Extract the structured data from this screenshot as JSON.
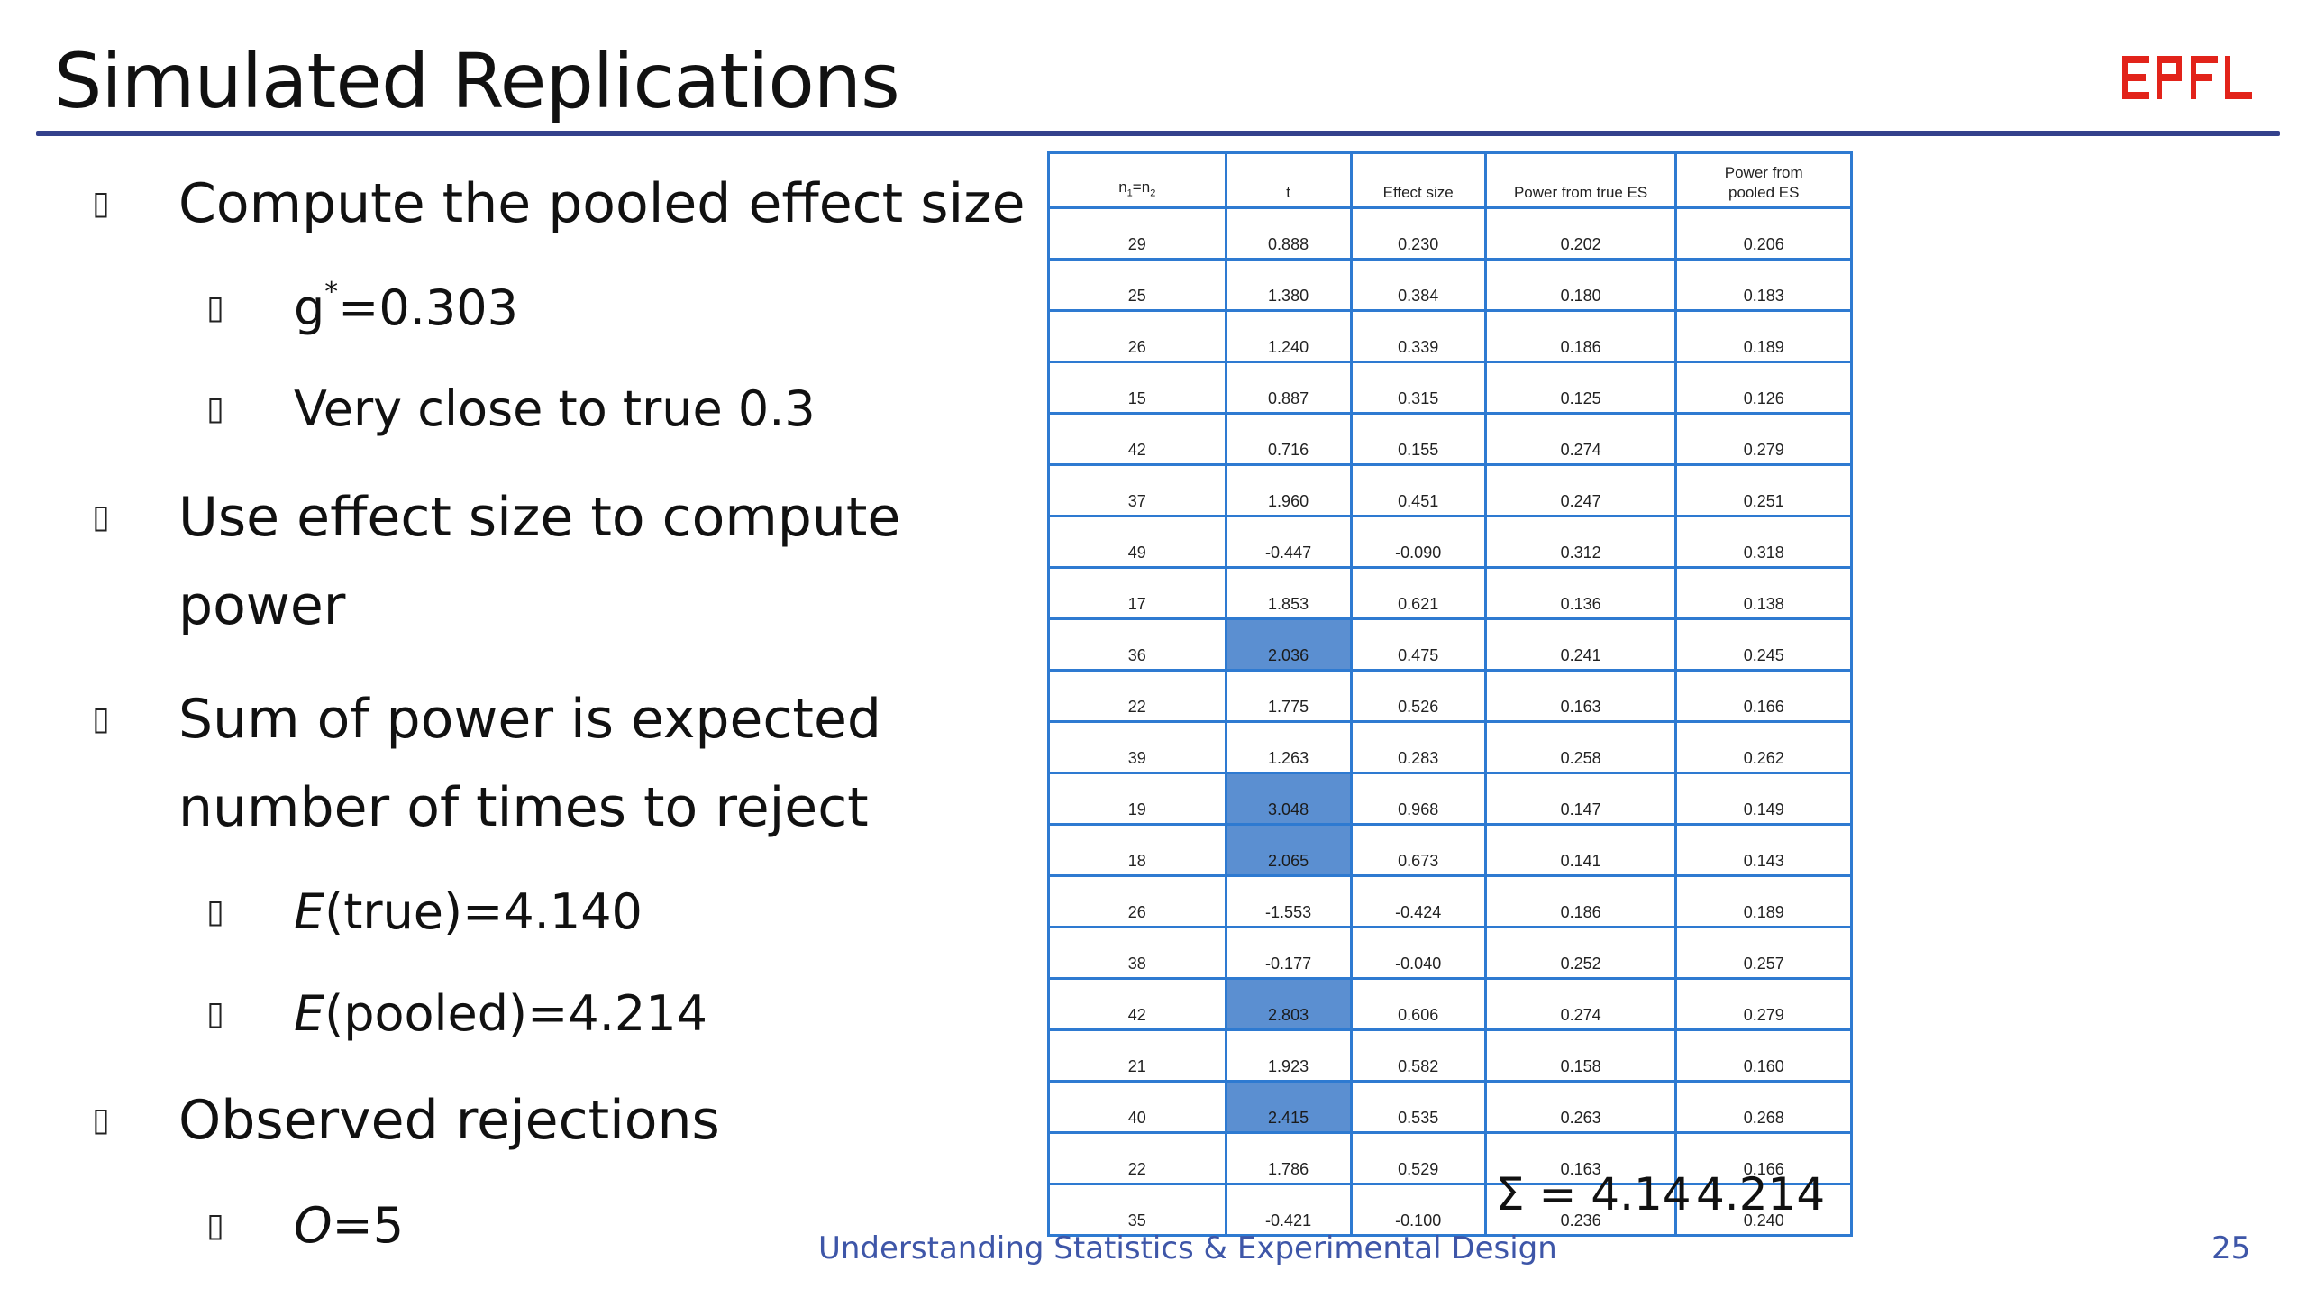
{
  "slide": {
    "title": "Simulated Replications",
    "logo_text": "EPFL",
    "logo_color": "#e2231a",
    "accent_color": "#34418c",
    "table_border_color": "#2e7ad1",
    "highlight_color": "#5b8fd1"
  },
  "bullets": [
    {
      "level": 1,
      "marker": "▯",
      "text": "Compute the pooled effect size"
    },
    {
      "level": 2,
      "marker": "▯",
      "text_main": "g",
      "sup": "*",
      "text_rest": "=0.303"
    },
    {
      "level": 2,
      "marker": "▯",
      "text": "Very close to true 0.3"
    },
    {
      "level": 1,
      "marker": "▯",
      "text": "Use effect size to compute"
    },
    {
      "level": 1,
      "marker": "",
      "text": "power"
    },
    {
      "level": 1,
      "marker": "▯",
      "text": "Sum of power is expected"
    },
    {
      "level": 1,
      "marker": "",
      "text": "number of times to reject"
    },
    {
      "level": 2,
      "marker": "▯",
      "italic": "E",
      "text": "(true)=4.140"
    },
    {
      "level": 2,
      "marker": "▯",
      "italic": "E",
      "text": "(pooled)=4.214"
    },
    {
      "level": 1,
      "marker": "▯",
      "text": "Observed rejections"
    },
    {
      "level": 2,
      "marker": "▯",
      "italic": "O",
      "text": "=5"
    }
  ],
  "table": {
    "headers": {
      "n": {
        "base": "n",
        "sub1": "1",
        "eq": "=n",
        "sub2": "2"
      },
      "t": "t",
      "effect_size": "Effect size",
      "power_true": "Power from true ES",
      "power_pooled_line1": "Power from",
      "power_pooled_line2": "pooled ES"
    },
    "rows": [
      {
        "n": "29",
        "t": "0.888",
        "es": "0.230",
        "pt": "0.202",
        "pp": "0.206",
        "hl": false
      },
      {
        "n": "25",
        "t": "1.380",
        "es": "0.384",
        "pt": "0.180",
        "pp": "0.183",
        "hl": false
      },
      {
        "n": "26",
        "t": "1.240",
        "es": "0.339",
        "pt": "0.186",
        "pp": "0.189",
        "hl": false
      },
      {
        "n": "15",
        "t": "0.887",
        "es": "0.315",
        "pt": "0.125",
        "pp": "0.126",
        "hl": false
      },
      {
        "n": "42",
        "t": "0.716",
        "es": "0.155",
        "pt": "0.274",
        "pp": "0.279",
        "hl": false
      },
      {
        "n": "37",
        "t": "1.960",
        "es": "0.451",
        "pt": "0.247",
        "pp": "0.251",
        "hl": false
      },
      {
        "n": "49",
        "t": "-0.447",
        "es": "-0.090",
        "pt": "0.312",
        "pp": "0.318",
        "hl": false
      },
      {
        "n": "17",
        "t": "1.853",
        "es": "0.621",
        "pt": "0.136",
        "pp": "0.138",
        "hl": false
      },
      {
        "n": "36",
        "t": "2.036",
        "es": "0.475",
        "pt": "0.241",
        "pp": "0.245",
        "hl": true
      },
      {
        "n": "22",
        "t": "1.775",
        "es": "0.526",
        "pt": "0.163",
        "pp": "0.166",
        "hl": false
      },
      {
        "n": "39",
        "t": "1.263",
        "es": "0.283",
        "pt": "0.258",
        "pp": "0.262",
        "hl": false
      },
      {
        "n": "19",
        "t": "3.048",
        "es": "0.968",
        "pt": "0.147",
        "pp": "0.149",
        "hl": true
      },
      {
        "n": "18",
        "t": "2.065",
        "es": "0.673",
        "pt": "0.141",
        "pp": "0.143",
        "hl": true
      },
      {
        "n": "26",
        "t": "-1.553",
        "es": "-0.424",
        "pt": "0.186",
        "pp": "0.189",
        "hl": false
      },
      {
        "n": "38",
        "t": "-0.177",
        "es": "-0.040",
        "pt": "0.252",
        "pp": "0.257",
        "hl": false
      },
      {
        "n": "42",
        "t": "2.803",
        "es": "0.606",
        "pt": "0.274",
        "pp": "0.279",
        "hl": true
      },
      {
        "n": "21",
        "t": "1.923",
        "es": "0.582",
        "pt": "0.158",
        "pp": "0.160",
        "hl": false
      },
      {
        "n": "40",
        "t": "2.415",
        "es": "0.535",
        "pt": "0.263",
        "pp": "0.268",
        "hl": true
      },
      {
        "n": "22",
        "t": "1.786",
        "es": "0.529",
        "pt": "0.163",
        "pp": "0.166",
        "hl": false
      },
      {
        "n": "35",
        "t": "-0.421",
        "es": "-0.100",
        "pt": "0.236",
        "pp": "0.240",
        "hl": false
      }
    ],
    "sum_label": "Σ = 4.14",
    "sum_pooled": "4.214"
  },
  "footer": {
    "text": "Understanding Statistics & Experimental Design",
    "page_number": "25"
  }
}
